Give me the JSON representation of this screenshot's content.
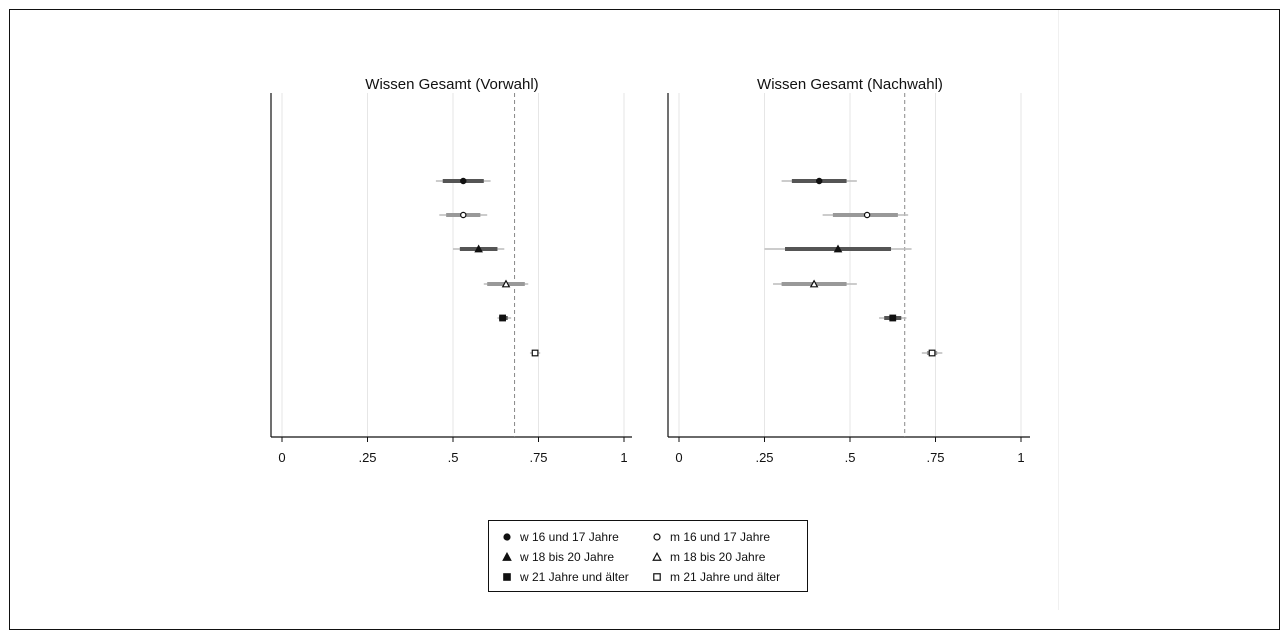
{
  "chart_data": [
    {
      "type": "scatter",
      "title": "Wissen Gesamt (Vorwahl)",
      "xlim": [
        0,
        1
      ],
      "xticks": [
        0,
        0.25,
        0.5,
        0.75,
        1
      ],
      "xticklabels": [
        "0",
        ".25",
        ".5",
        ".75",
        "1"
      ],
      "grid": true,
      "reference_line": 0.68,
      "series": [
        {
          "name": "w 16 und 17 Jahre",
          "marker": "circle-filled",
          "estimate": 0.53,
          "ci_inner": [
            0.47,
            0.59
          ],
          "ci_outer": [
            0.45,
            0.61
          ]
        },
        {
          "name": "m 16 und 17 Jahre",
          "marker": "circle-open",
          "estimate": 0.53,
          "ci_inner": [
            0.48,
            0.58
          ],
          "ci_outer": [
            0.46,
            0.6
          ]
        },
        {
          "name": "w 18 bis 20 Jahre",
          "marker": "triangle-filled",
          "estimate": 0.575,
          "ci_inner": [
            0.52,
            0.63
          ],
          "ci_outer": [
            0.5,
            0.65
          ]
        },
        {
          "name": "m 18 bis 20 Jahre",
          "marker": "triangle-open",
          "estimate": 0.655,
          "ci_inner": [
            0.6,
            0.71
          ],
          "ci_outer": [
            0.59,
            0.72
          ]
        },
        {
          "name": "w 21 Jahre und älter",
          "marker": "square-filled",
          "estimate": 0.645,
          "ci_inner": [
            0.635,
            0.66
          ],
          "ci_outer": [
            0.63,
            0.67
          ]
        },
        {
          "name": "m 21 Jahre und älter",
          "marker": "square-open",
          "estimate": 0.74,
          "ci_inner": [
            0.733,
            0.748
          ],
          "ci_outer": [
            0.725,
            0.755
          ]
        }
      ]
    },
    {
      "type": "scatter",
      "title": "Wissen Gesamt (Nachwahl)",
      "xlim": [
        0,
        1
      ],
      "xticks": [
        0,
        0.25,
        0.5,
        0.75,
        1
      ],
      "xticklabels": [
        "0",
        ".25",
        ".5",
        ".75",
        "1"
      ],
      "grid": true,
      "reference_line": 0.66,
      "series": [
        {
          "name": "w 16 und 17 Jahre",
          "marker": "circle-filled",
          "estimate": 0.41,
          "ci_inner": [
            0.33,
            0.49
          ],
          "ci_outer": [
            0.3,
            0.52
          ]
        },
        {
          "name": "m 16 und 17 Jahre",
          "marker": "circle-open",
          "estimate": 0.55,
          "ci_inner": [
            0.45,
            0.64
          ],
          "ci_outer": [
            0.42,
            0.67
          ]
        },
        {
          "name": "w 18 bis 20 Jahre",
          "marker": "triangle-filled",
          "estimate": 0.465,
          "ci_inner": [
            0.31,
            0.62
          ],
          "ci_outer": [
            0.25,
            0.68
          ]
        },
        {
          "name": "m 18 bis 20 Jahre",
          "marker": "triangle-open",
          "estimate": 0.395,
          "ci_inner": [
            0.3,
            0.49
          ],
          "ci_outer": [
            0.275,
            0.52
          ]
        },
        {
          "name": "w 21 Jahre und älter",
          "marker": "square-filled",
          "estimate": 0.625,
          "ci_inner": [
            0.6,
            0.65
          ],
          "ci_outer": [
            0.585,
            0.665
          ]
        },
        {
          "name": "m 21 Jahre und älter",
          "marker": "square-open",
          "estimate": 0.74,
          "ci_inner": [
            0.725,
            0.755
          ],
          "ci_outer": [
            0.71,
            0.77
          ]
        }
      ]
    }
  ],
  "legend": {
    "placement": "bottom",
    "items": [
      {
        "label": "w 16 und 17 Jahre",
        "marker": "circle-filled"
      },
      {
        "label": "m 16 und 17 Jahre",
        "marker": "circle-open"
      },
      {
        "label": "w 18 bis 20 Jahre",
        "marker": "triangle-filled"
      },
      {
        "label": "m 18 bis 20 Jahre",
        "marker": "triangle-open"
      },
      {
        "label": "w 21 Jahre und älter",
        "marker": "square-filled"
      },
      {
        "label": "m 21 Jahre und älter",
        "marker": "square-open"
      }
    ]
  },
  "colors": {
    "axis": "#111111",
    "grid": "#e6e6e6",
    "ci_outer": "#bbbbbb",
    "ci_inner_filled": "#555555",
    "ci_inner_open": "#999999",
    "reference_line": "#888888",
    "marker": "#111111"
  }
}
